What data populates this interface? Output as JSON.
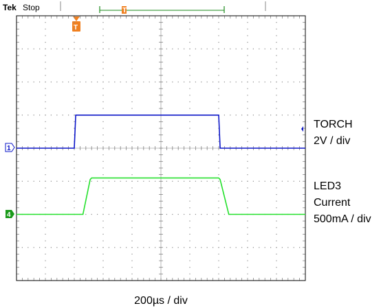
{
  "header": {
    "brand": "Tek",
    "status": "Stop"
  },
  "chart_data": {
    "type": "line",
    "title": "",
    "xlabel": "200µs / div",
    "grid": true,
    "x_divisions": 10,
    "y_divisions": 8,
    "x_units": "div",
    "y_units": "div",
    "series": [
      {
        "name": "TORCH",
        "channel": "1",
        "color": "#0a14c8",
        "scale": "2V / div",
        "label_lines": [
          "TORCH",
          "2V / div"
        ],
        "points": [
          [
            0,
            4.0
          ],
          [
            2.0,
            4.0
          ],
          [
            2.05,
            5.0
          ],
          [
            7.0,
            5.0
          ],
          [
            7.05,
            4.0
          ],
          [
            10,
            4.0
          ]
        ]
      },
      {
        "name": "LED3 Current",
        "channel": "4",
        "color": "#22e02a",
        "scale": "500mA / div",
        "label_lines": [
          "LED3",
          "Current",
          "500mA / div"
        ],
        "points": [
          [
            0,
            2.0
          ],
          [
            2.3,
            2.0
          ],
          [
            2.55,
            3.05
          ],
          [
            2.6,
            3.1
          ],
          [
            7.0,
            3.1
          ],
          [
            7.05,
            3.05
          ],
          [
            7.35,
            2.0
          ],
          [
            10,
            2.0
          ]
        ]
      }
    ],
    "trigger_marker": "T",
    "trigger_position_div": 2.0,
    "xlim": [
      0,
      10
    ],
    "ylim": [
      0,
      8
    ]
  },
  "colors": {
    "grid": "#888888",
    "trigger": "#f08020",
    "record_bar": "#1a8a1a"
  }
}
